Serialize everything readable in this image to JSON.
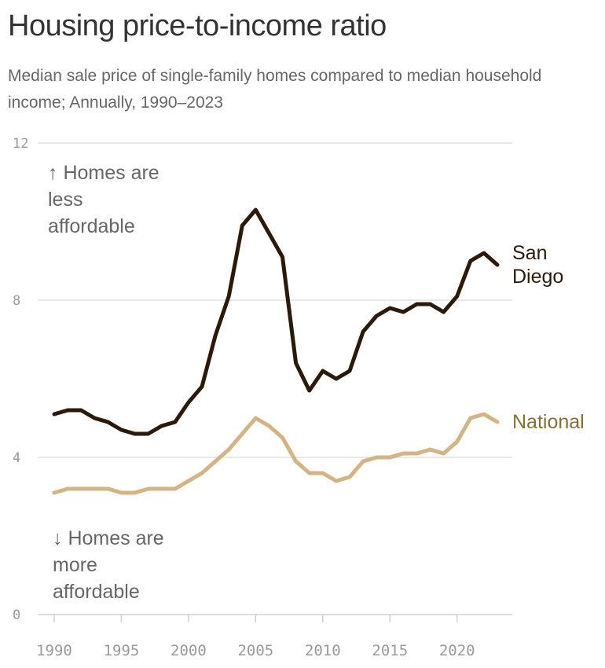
{
  "chart_data": {
    "type": "line",
    "title": "Housing price-to-income ratio",
    "subtitle": "Median sale price of single-family homes compared to median household income; Annually, 1990–2023",
    "x": [
      1990,
      1991,
      1992,
      1993,
      1994,
      1995,
      1996,
      1997,
      1998,
      1999,
      2000,
      2001,
      2002,
      2003,
      2004,
      2005,
      2006,
      2007,
      2008,
      2009,
      2010,
      2011,
      2012,
      2013,
      2014,
      2015,
      2016,
      2017,
      2018,
      2019,
      2020,
      2021,
      2022,
      2023
    ],
    "ylim": [
      0,
      12
    ],
    "yticks": [
      "0",
      "4",
      "8",
      "12"
    ],
    "ytick_values": [
      0,
      4,
      8,
      12
    ],
    "xticks": [
      "1990",
      "1995",
      "2000",
      "2005",
      "2010",
      "2015",
      "2020"
    ],
    "xtick_values": [
      1990,
      1995,
      2000,
      2005,
      2010,
      2015,
      2020
    ],
    "series": [
      {
        "name": "San Diego",
        "label_lines": [
          "San",
          "Diego"
        ],
        "color": "#2b1a0a",
        "values": [
          5.1,
          5.2,
          5.2,
          5.0,
          4.9,
          4.7,
          4.6,
          4.6,
          4.8,
          4.9,
          5.4,
          5.8,
          7.1,
          8.1,
          9.9,
          10.3,
          9.7,
          9.1,
          6.4,
          5.7,
          6.2,
          6.0,
          6.2,
          7.2,
          7.6,
          7.8,
          7.7,
          7.9,
          7.9,
          7.7,
          8.1,
          9.0,
          9.2,
          8.9
        ]
      },
      {
        "name": "National",
        "label_lines": [
          "National"
        ],
        "color": "#d4b483",
        "label_color": "#8a6d33",
        "values": [
          3.1,
          3.2,
          3.2,
          3.2,
          3.2,
          3.1,
          3.1,
          3.2,
          3.2,
          3.2,
          3.4,
          3.6,
          3.9,
          4.2,
          4.6,
          5.0,
          4.8,
          4.5,
          3.9,
          3.6,
          3.6,
          3.4,
          3.5,
          3.9,
          4.0,
          4.0,
          4.1,
          4.1,
          4.2,
          4.1,
          4.4,
          5.0,
          5.1,
          4.9
        ]
      }
    ],
    "annotations": {
      "up": [
        "↑ Homes are",
        "less",
        "affordable"
      ],
      "down": [
        "↓ Homes are",
        "more",
        "affordable"
      ]
    }
  }
}
